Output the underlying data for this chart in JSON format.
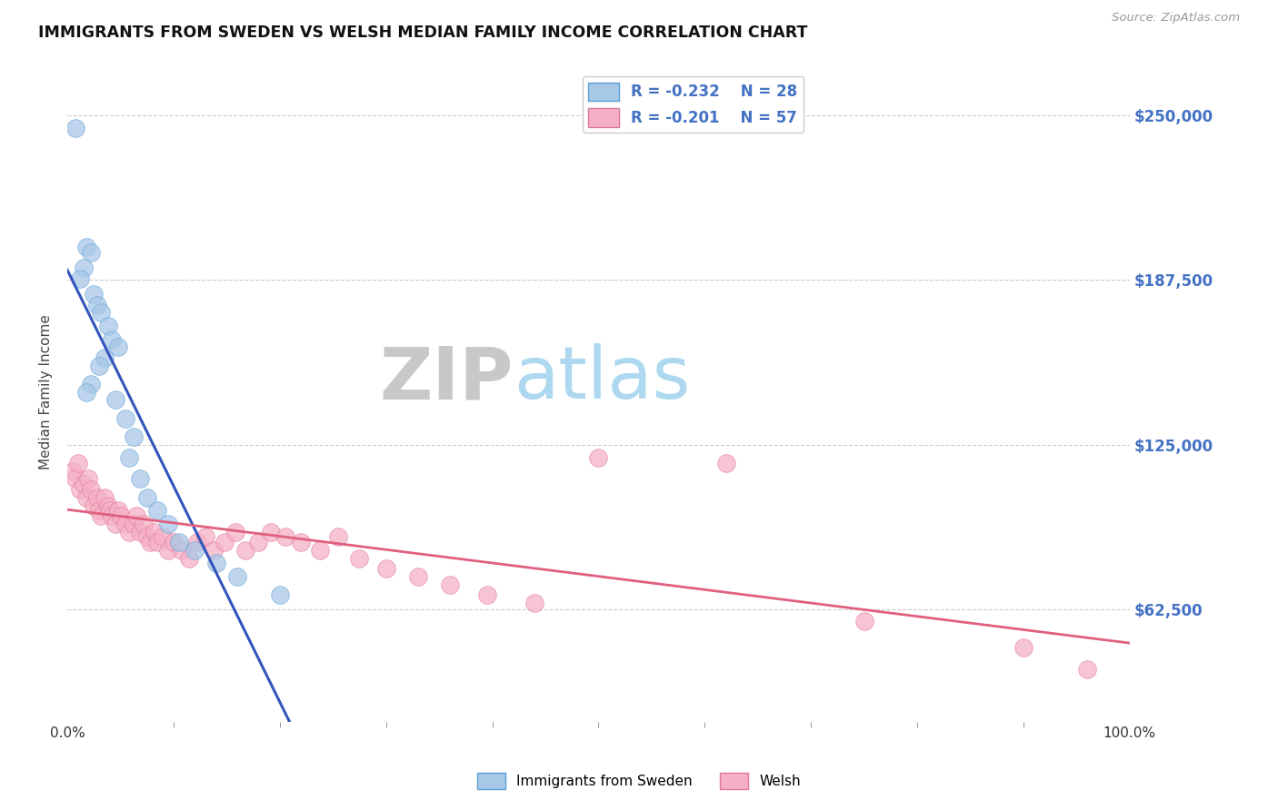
{
  "title": "IMMIGRANTS FROM SWEDEN VS WELSH MEDIAN FAMILY INCOME CORRELATION CHART",
  "source": "Source: ZipAtlas.com",
  "ylabel": "Median Family Income",
  "ytick_values": [
    62500,
    125000,
    187500,
    250000
  ],
  "ytick_labels": [
    "$62,500",
    "$125,000",
    "$187,500",
    "$250,000"
  ],
  "grid_color": "#cccccc",
  "background_color": "#ffffff",
  "watermark_zip": "ZIP",
  "watermark_atlas": "atlas",
  "watermark_color_zip": "#c8c8c8",
  "watermark_color_atlas": "#add8f0",
  "legend_r1": "R = -0.232",
  "legend_n1": "N = 28",
  "legend_r2": "R = -0.201",
  "legend_n2": "N = 57",
  "series1_color": "#a8c8e8",
  "series1_edge": "#5a9fd4",
  "series2_color": "#f5b0c5",
  "series2_edge": "#e07898",
  "trend1_color": "#3355bb",
  "trend2_color": "#e06080",
  "ref_line_color": "#aaaacc",
  "sweden_x": [
    0.008,
    0.018,
    0.022,
    0.015,
    0.012,
    0.025,
    0.028,
    0.032,
    0.038,
    0.042,
    0.048,
    0.035,
    0.03,
    0.022,
    0.018,
    0.045,
    0.055,
    0.062,
    0.058,
    0.068,
    0.075,
    0.085,
    0.095,
    0.105,
    0.12,
    0.14,
    0.16,
    0.2
  ],
  "sweden_y": [
    245000,
    200000,
    198000,
    192000,
    188000,
    182000,
    178000,
    175000,
    170000,
    165000,
    162000,
    158000,
    155000,
    148000,
    145000,
    142000,
    135000,
    128000,
    120000,
    112000,
    105000,
    100000,
    95000,
    88000,
    85000,
    80000,
    75000,
    68000
  ],
  "welsh_x": [
    0.005,
    0.008,
    0.01,
    0.012,
    0.015,
    0.018,
    0.02,
    0.022,
    0.025,
    0.028,
    0.03,
    0.032,
    0.035,
    0.038,
    0.04,
    0.042,
    0.045,
    0.048,
    0.05,
    0.055,
    0.058,
    0.062,
    0.065,
    0.068,
    0.072,
    0.075,
    0.078,
    0.082,
    0.085,
    0.09,
    0.095,
    0.1,
    0.108,
    0.115,
    0.122,
    0.13,
    0.138,
    0.148,
    0.158,
    0.168,
    0.18,
    0.192,
    0.205,
    0.22,
    0.238,
    0.255,
    0.275,
    0.3,
    0.33,
    0.36,
    0.395,
    0.44,
    0.5,
    0.62,
    0.75,
    0.9,
    0.96
  ],
  "welsh_y": [
    115000,
    112000,
    118000,
    108000,
    110000,
    105000,
    112000,
    108000,
    102000,
    105000,
    100000,
    98000,
    105000,
    102000,
    100000,
    98000,
    95000,
    100000,
    98000,
    95000,
    92000,
    95000,
    98000,
    92000,
    95000,
    90000,
    88000,
    92000,
    88000,
    90000,
    85000,
    88000,
    85000,
    82000,
    88000,
    90000,
    85000,
    88000,
    92000,
    85000,
    88000,
    92000,
    90000,
    88000,
    85000,
    90000,
    82000,
    78000,
    75000,
    72000,
    68000,
    65000,
    120000,
    118000,
    58000,
    48000,
    40000
  ]
}
